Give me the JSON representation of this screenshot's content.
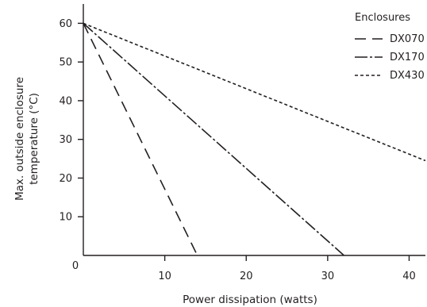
{
  "chart_data": {
    "type": "line",
    "xlabel": "Power dissipation (watts)",
    "ylabel_lines": [
      "Max. outside enclosure",
      "temperature (°C)"
    ],
    "xlim": [
      0,
      42
    ],
    "ylim": [
      0,
      65
    ],
    "origin_label": "0",
    "x_ticks": [
      10,
      20,
      30,
      40
    ],
    "y_ticks": [
      10,
      20,
      30,
      40,
      50,
      60
    ],
    "legend": {
      "title": "Enclosures",
      "placement": "top-right"
    },
    "series": [
      {
        "name": "DX070",
        "dash": "long-dash",
        "x": [
          0,
          14
        ],
        "y": [
          60,
          0
        ]
      },
      {
        "name": "DX170",
        "dash": "dash-dot",
        "x": [
          0,
          32
        ],
        "y": [
          60,
          0
        ]
      },
      {
        "name": "DX430",
        "dash": "short-dash",
        "x": [
          0,
          42
        ],
        "y": [
          60,
          24.5
        ]
      }
    ]
  }
}
